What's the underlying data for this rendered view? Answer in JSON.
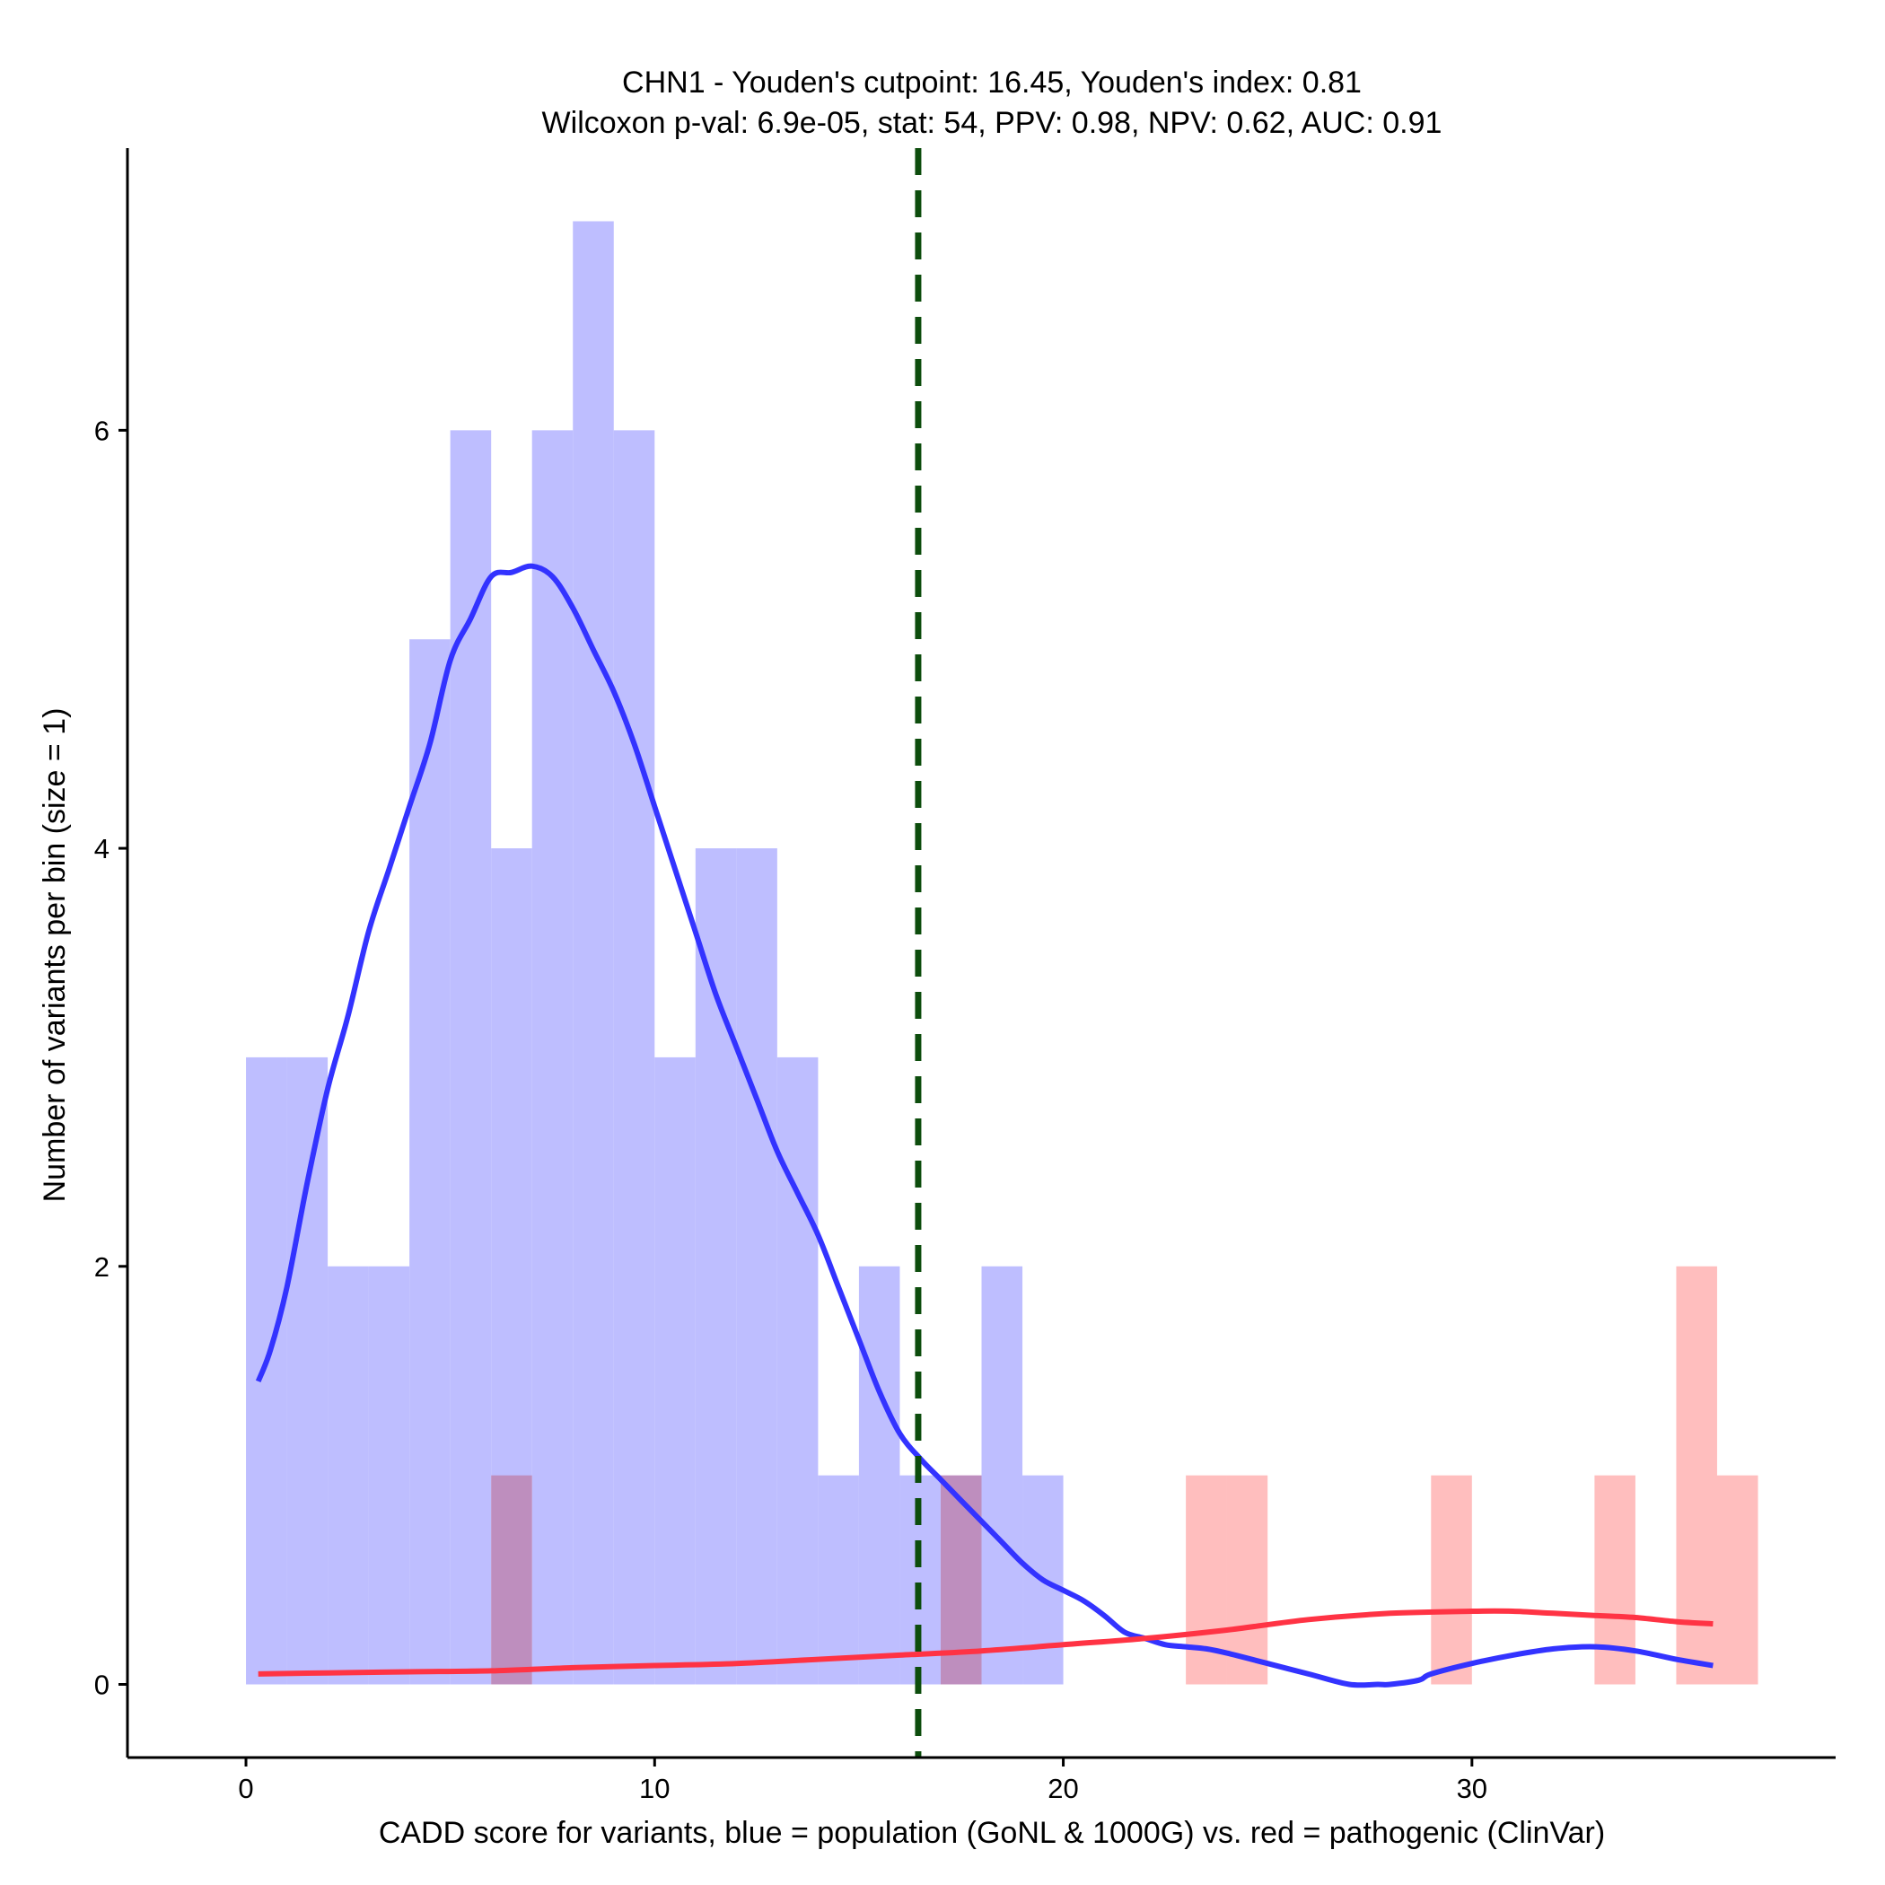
{
  "chart_data": {
    "type": "histogram",
    "title_line1": "CHN1 - Youden's cutpoint: 16.45, Youden's index: 0.81",
    "title_line2": "Wilcoxon p-val: 6.9e-05, stat: 54, PPV: 0.98, NPV: 0.62, AUC: 0.91",
    "xlabel": "CADD score for variants, blue = population (GoNL & 1000G) vs. red = pathogenic (ClinVar)",
    "ylabel": "Number of variants per bin (size = 1)",
    "xlim": [
      -2.9,
      38.9
    ],
    "ylim": [
      -0.35,
      7.35
    ],
    "x_ticks": [
      0,
      10,
      20,
      30
    ],
    "y_ticks": [
      0,
      2,
      4,
      6
    ],
    "bin_width": 1,
    "cutpoint": 16.45,
    "colors": {
      "population_bar": "#b3b3ff",
      "pathogenic_bar": "#ffb3b3",
      "population_curve": "#3333ff",
      "pathogenic_curve": "#ff3344",
      "cutpoint_line": "#0d4d0d"
    },
    "series": [
      {
        "name": "population (GoNL & 1000G)",
        "bins_start": [
          0,
          1,
          2,
          3,
          4,
          5,
          6,
          7,
          8,
          9,
          10,
          11,
          12,
          13,
          14,
          15,
          16,
          17,
          18,
          19
        ],
        "counts": [
          3,
          3,
          2,
          2,
          5,
          6,
          4,
          6,
          7,
          6,
          3,
          4,
          4,
          3,
          1,
          2,
          1,
          1,
          2,
          1
        ]
      },
      {
        "name": "pathogenic (ClinVar)",
        "bins_start": [
          6,
          17,
          23,
          24,
          29,
          33,
          35,
          36
        ],
        "counts": [
          1,
          1,
          1,
          1,
          1,
          1,
          2,
          1
        ]
      },
      {
        "name": "population density (scaled)",
        "x": [
          0.3,
          0.6,
          1.0,
          1.5,
          2.0,
          2.5,
          3.0,
          3.5,
          4.0,
          4.5,
          5.0,
          5.5,
          6.0,
          6.5,
          7.0,
          7.5,
          8.0,
          8.5,
          9.0,
          9.5,
          10.0,
          10.5,
          11.0,
          11.5,
          12.0,
          12.5,
          13.0,
          13.5,
          14.0,
          14.5,
          15.0,
          15.5,
          16.0,
          16.5,
          17.0,
          17.5,
          18.0,
          18.5,
          19.0,
          19.5,
          20.0,
          20.5,
          21.0,
          21.5,
          22.0,
          22.5,
          23.0,
          23.5,
          24.0,
          25.0,
          26.0,
          27.0,
          27.7,
          28.0,
          28.7,
          29.0,
          30.0,
          31.0,
          32.0,
          33.0,
          34.0,
          35.0,
          35.9
        ],
        "values": [
          1.45,
          1.6,
          1.9,
          2.4,
          2.85,
          3.2,
          3.6,
          3.9,
          4.2,
          4.5,
          4.9,
          5.1,
          5.3,
          5.32,
          5.35,
          5.3,
          5.15,
          4.95,
          4.75,
          4.5,
          4.2,
          3.9,
          3.6,
          3.3,
          3.05,
          2.8,
          2.55,
          2.35,
          2.15,
          1.9,
          1.65,
          1.4,
          1.2,
          1.08,
          0.98,
          0.88,
          0.78,
          0.68,
          0.58,
          0.5,
          0.45,
          0.4,
          0.33,
          0.25,
          0.22,
          0.19,
          0.18,
          0.17,
          0.15,
          0.1,
          0.05,
          0.0,
          0.0,
          0.0,
          0.02,
          0.05,
          0.1,
          0.14,
          0.17,
          0.18,
          0.16,
          0.12,
          0.09
        ]
      },
      {
        "name": "pathogenic density (scaled)",
        "x": [
          0.3,
          2.0,
          4.0,
          6.0,
          8.0,
          10.0,
          12.0,
          14.0,
          16.0,
          18.0,
          20.0,
          22.0,
          24.0,
          26.0,
          28.0,
          30.0,
          31.0,
          32.0,
          33.0,
          34.0,
          35.0,
          35.9
        ],
        "values": [
          0.05,
          0.055,
          0.06,
          0.065,
          0.08,
          0.09,
          0.1,
          0.12,
          0.14,
          0.16,
          0.19,
          0.22,
          0.26,
          0.31,
          0.34,
          0.35,
          0.35,
          0.34,
          0.33,
          0.32,
          0.3,
          0.29
        ]
      }
    ]
  }
}
